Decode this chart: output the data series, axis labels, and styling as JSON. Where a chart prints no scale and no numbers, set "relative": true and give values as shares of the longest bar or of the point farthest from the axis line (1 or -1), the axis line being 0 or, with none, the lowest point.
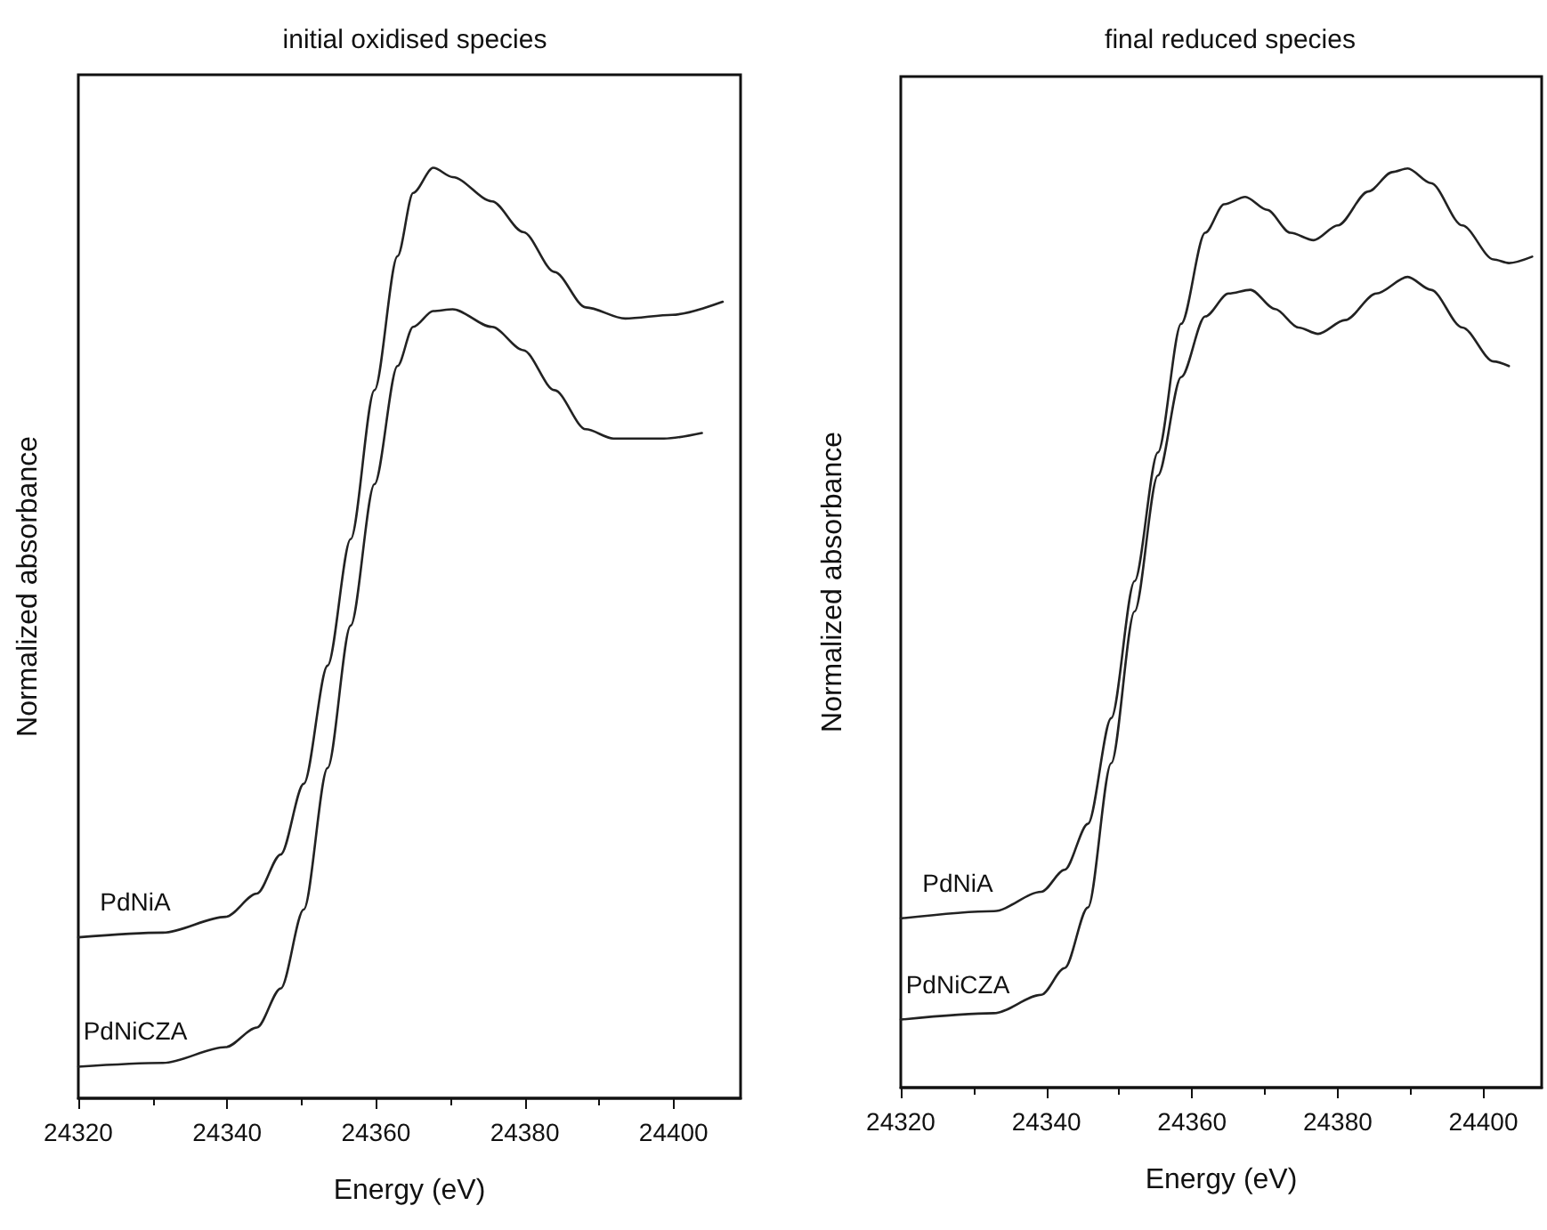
{
  "chart_data": [
    {
      "type": "line",
      "title": "initial oxidised species",
      "xlabel": "Energy (eV)",
      "ylabel": "Normalized absorbance",
      "relative": true,
      "xlim": [
        24320,
        24409
      ],
      "xticks": [
        24320,
        24340,
        24360,
        24380,
        24400
      ],
      "grid": false,
      "legend": false,
      "marker": "none",
      "line_style": "solid",
      "series": [
        {
          "name": "PdNiA",
          "color": "#222222",
          "x": [
            24320,
            24331.4,
            24339.8,
            24344,
            24347.2,
            24350.3,
            24353.5,
            24356.6,
            24359.8,
            24362.9,
            24365,
            24367.7,
            24370.3,
            24375.6,
            24379.8,
            24384,
            24388.2,
            24393.5,
            24399.8,
            24406.6
          ],
          "values": [
            0.173,
            0.178,
            0.195,
            0.22,
            0.262,
            0.338,
            0.465,
            0.601,
            0.761,
            0.905,
            0.973,
            1,
            0.99,
            0.964,
            0.931,
            0.888,
            0.85,
            0.838,
            0.842,
            0.856
          ]
        },
        {
          "name": "PdNiCZA",
          "color": "#222222",
          "x": [
            24320,
            24331.4,
            24339.8,
            24344,
            24347.2,
            24350.3,
            24353.5,
            24356.6,
            24359.8,
            24362.9,
            24365,
            24367.7,
            24370.3,
            24375.6,
            24379.8,
            24384,
            24388.2,
            24391.9,
            24398.7,
            24403.8
          ],
          "values": [
            0.034,
            0.038,
            0.055,
            0.076,
            0.118,
            0.203,
            0.355,
            0.508,
            0.66,
            0.787,
            0.829,
            0.846,
            0.848,
            0.829,
            0.804,
            0.761,
            0.719,
            0.709,
            0.709,
            0.715
          ]
        }
      ]
    },
    {
      "type": "line",
      "title": "final reduced species",
      "xlabel": "Energy (eV)",
      "ylabel": "Normalized absorbance",
      "relative": true,
      "xlim": [
        24320,
        24408
      ],
      "xticks": [
        24320,
        24340,
        24360,
        24380,
        24400
      ],
      "grid": false,
      "legend": false,
      "marker": "none",
      "line_style": "solid",
      "series": [
        {
          "name": "PdNiA",
          "color": "#222222",
          "x": [
            24320,
            24332.8,
            24339.3,
            24342.5,
            24345.7,
            24348.9,
            24352.1,
            24355.3,
            24358.5,
            24361.8,
            24364.4,
            24367.3,
            24370.3,
            24373.5,
            24376.7,
            24380,
            24384.2,
            24387.5,
            24389.6,
            24392.8,
            24397.1,
            24401.4,
            24403.5,
            24406.7
          ],
          "values": [
            0.184,
            0.192,
            0.213,
            0.237,
            0.287,
            0.402,
            0.551,
            0.691,
            0.831,
            0.93,
            0.961,
            0.969,
            0.955,
            0.93,
            0.922,
            0.938,
            0.975,
            0.996,
            1,
            0.984,
            0.938,
            0.901,
            0.897,
            0.904
          ]
        },
        {
          "name": "PdNiCZA",
          "color": "#222222",
          "x": [
            24320,
            24332.8,
            24339.3,
            24342.5,
            24345.7,
            24348.9,
            24352.1,
            24355.3,
            24358.5,
            24361.8,
            24365,
            24368,
            24371.4,
            24374.6,
            24377.3,
            24381,
            24385.3,
            24389.6,
            24392.8,
            24397.1,
            24401.4,
            24403.5
          ],
          "values": [
            0.074,
            0.081,
            0.101,
            0.13,
            0.196,
            0.353,
            0.518,
            0.666,
            0.773,
            0.839,
            0.864,
            0.868,
            0.847,
            0.827,
            0.82,
            0.835,
            0.864,
            0.882,
            0.868,
            0.827,
            0.79,
            0.785
          ]
        }
      ]
    }
  ]
}
